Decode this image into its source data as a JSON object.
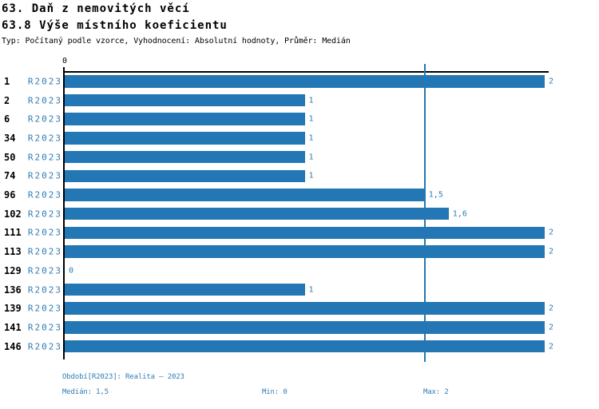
{
  "title": "63. Daň z nemovitých věcí",
  "subtitle": "63.8 Výše místního koeficientu",
  "meta_line": "Typ: Počítaný podle vzorce, Vyhodnocení: Absolutní hodnoty, Průměr: Medián",
  "colors": {
    "bar": "#2277b4",
    "median_line": "#2277b4",
    "blue_text": "#2e7cb5",
    "axis": "#000000"
  },
  "chart_data": {
    "type": "bar",
    "orientation": "horizontal",
    "title": "63.8 Výše místního koeficientu",
    "categories": [
      "1",
      "2",
      "6",
      "34",
      "50",
      "74",
      "96",
      "102",
      "111",
      "113",
      "129",
      "136",
      "139",
      "141",
      "146"
    ],
    "period_label": "R2023",
    "values": [
      2,
      1,
      1,
      1,
      1,
      1,
      1.5,
      1.6,
      2,
      2,
      0,
      1,
      2,
      2,
      2
    ],
    "value_labels": [
      "2",
      "1",
      "1",
      "1",
      "1",
      "1",
      "1,5",
      "1,6",
      "2",
      "2",
      "0",
      "1",
      "2",
      "2",
      "2"
    ],
    "xlim": [
      0,
      2
    ],
    "x_ticks": [
      {
        "value": 0,
        "label": "0"
      }
    ],
    "median_line_value": 1.5,
    "grid": false,
    "legend_position": "none"
  },
  "footer": {
    "period_line": "Období[R2023]: Realita – 2023",
    "median": "Medián: 1,5",
    "min": "Min: 0",
    "max": "Max: 2"
  }
}
